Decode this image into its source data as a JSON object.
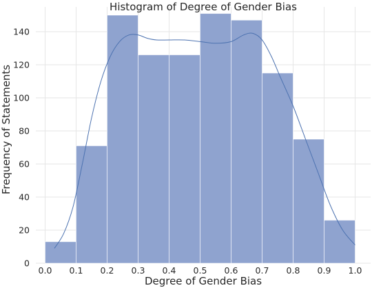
{
  "chart_data": {
    "type": "bar",
    "title": "Histogram of Degree of Gender Bias",
    "xlabel": "Degree of Gender Bias",
    "ylabel": "Frequency of Statements",
    "xlim": [
      -0.03,
      1.05
    ],
    "ylim": [
      0,
      155
    ],
    "bins": [
      {
        "start": 0.0,
        "end": 0.1,
        "value": 13
      },
      {
        "start": 0.1,
        "end": 0.2,
        "value": 71
      },
      {
        "start": 0.2,
        "end": 0.3,
        "value": 150
      },
      {
        "start": 0.3,
        "end": 0.4,
        "value": 126
      },
      {
        "start": 0.4,
        "end": 0.5,
        "value": 126
      },
      {
        "start": 0.5,
        "end": 0.6,
        "value": 151
      },
      {
        "start": 0.6,
        "end": 0.7,
        "value": 147
      },
      {
        "start": 0.7,
        "end": 0.8,
        "value": 115
      },
      {
        "start": 0.8,
        "end": 0.9,
        "value": 75
      },
      {
        "start": 0.9,
        "end": 1.0,
        "value": 26
      }
    ],
    "xticks": [
      "0.0",
      "0.1",
      "0.2",
      "0.3",
      "0.4",
      "0.5",
      "0.6",
      "0.7",
      "0.8",
      "0.9",
      "1.0"
    ],
    "yticks": [
      "0",
      "20",
      "40",
      "60",
      "80",
      "100",
      "120",
      "140"
    ],
    "kde": {
      "x": [
        0.03,
        0.06,
        0.09,
        0.12,
        0.15,
        0.18,
        0.21,
        0.24,
        0.27,
        0.3,
        0.33,
        0.36,
        0.4,
        0.45,
        0.5,
        0.55,
        0.6,
        0.64,
        0.67,
        0.7,
        0.73,
        0.76,
        0.8,
        0.84,
        0.88,
        0.92,
        0.96,
        1.0
      ],
      "y": [
        9,
        18,
        34,
        60,
        88,
        110,
        125,
        134,
        138,
        138,
        136,
        135,
        135,
        135,
        134,
        133,
        134,
        138,
        139,
        135,
        125,
        112,
        95,
        75,
        55,
        35,
        20,
        11
      ]
    },
    "bar_color": "#8fa3cf",
    "line_color": "#4c72b0",
    "grid": true,
    "grid_color": "#e6e6e6",
    "legend": "none"
  }
}
